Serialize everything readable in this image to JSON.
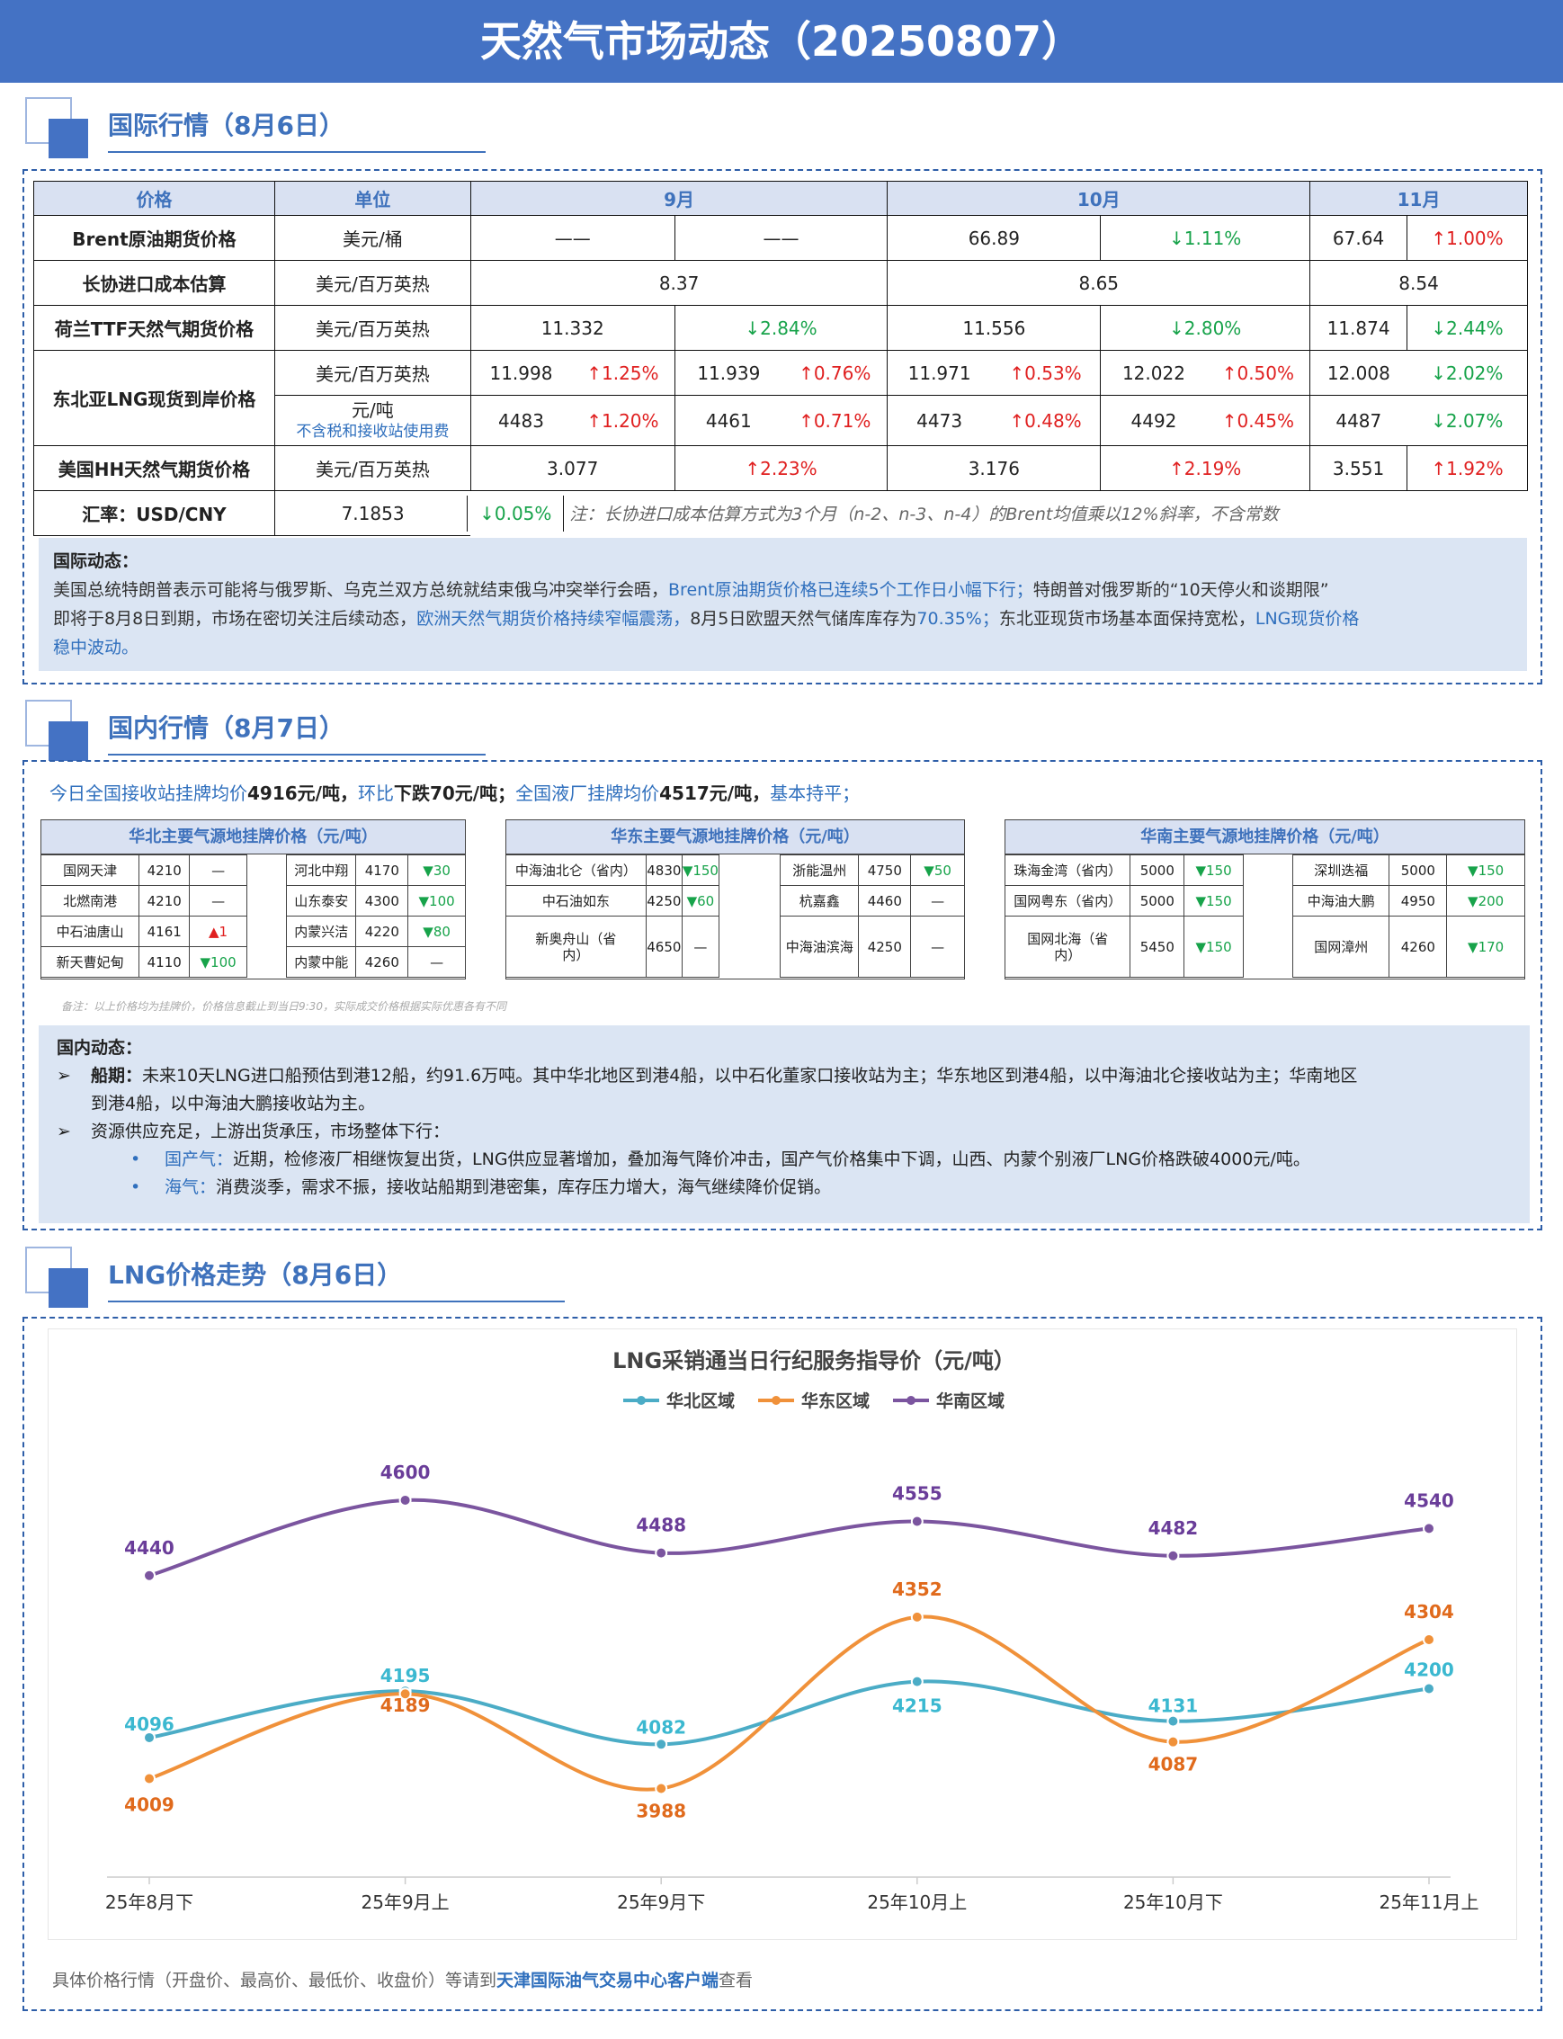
{
  "title": "天然气市场动态（20250807）",
  "sections": {
    "intl": "国际行情（8月6日）",
    "domestic": "国内行情（8月7日）",
    "trend": "LNG价格走势（8月6日）"
  },
  "intl_table": {
    "headers": [
      "价格",
      "单位",
      "9月",
      "10月",
      "11月"
    ],
    "brent": {
      "label": "Brent原油期货价格",
      "unit": "美元/桶",
      "sep_v": "——",
      "sep_c": "——",
      "oct_v": "66.89",
      "oct_c": "↓1.11%",
      "nov_v": "67.64",
      "nov_c": "↑1.00%"
    },
    "longterm": {
      "label": "长协进口成本估算",
      "unit": "美元/百万英热",
      "sep": "8.37",
      "oct": "8.65",
      "nov": "8.54"
    },
    "ttf": {
      "label": "荷兰TTF天然气期货价格",
      "unit": "美元/百万英热",
      "sep_v": "11.332",
      "sep_c": "↓2.84%",
      "oct_v": "11.556",
      "oct_c": "↓2.80%",
      "nov_v": "11.874",
      "nov_c": "↓2.44%"
    },
    "ne_asia": {
      "label": "东北亚LNG现货到岸价格",
      "unit1": "美元/百万英热",
      "row1": [
        "11.998",
        "↑1.25%",
        "11.939",
        "↑0.76%",
        "11.971",
        "↑0.53%",
        "12.022",
        "↑0.50%",
        "12.008",
        "↓2.02%"
      ],
      "unit2a": "元/吨",
      "unit2b": "不含税和接收站使用费",
      "row2": [
        "4483",
        "↑1.20%",
        "4461",
        "↑0.71%",
        "4473",
        "↑0.48%",
        "4492",
        "↑0.45%",
        "4487",
        "↓2.07%"
      ]
    },
    "hh": {
      "label": "美国HH天然气期货价格",
      "unit": "美元/百万英热",
      "sep_v": "3.077",
      "sep_c": "↑2.23%",
      "oct_v": "3.176",
      "oct_c": "↑2.19%",
      "nov_v": "3.551",
      "nov_c": "↑1.92%"
    },
    "fx": {
      "label": "汇率：USD/CNY",
      "value": "7.1853",
      "change": "↓0.05%"
    },
    "note": "注：长协进口成本估算方式为3个月（n-2、n-3、n-4）的Brent均值乘以12%斜率，不含常数"
  },
  "intl_news": {
    "title": "国际动态：",
    "p1": "美国总统特朗普表示可能将与俄罗斯、乌克兰双方总统就结束俄乌冲突举行会晤，",
    "p1b": "Brent原油期货价格已连续5个工作日小幅下行；",
    "p1c": "特朗普对俄罗斯的“10天停火和谈期限”",
    "p2": "即将于8月8日到期，市场在密切关注后续动态，",
    "p2b": "欧洲天然气期货价格持续窄幅震荡，",
    "p2c": "8月5日欧盟天然气储库库存为",
    "p2d": "70.35%；",
    "p2e": "东北亚现货市场基本面保持宽松，",
    "p2f": "LNG现货价格",
    "p3": "稳中波动。"
  },
  "domestic_summary": {
    "a": "今日全国接收站挂牌均价",
    "b": "4916元/吨，",
    "c": "环比",
    "d": "下跌70元/吨；",
    "e": "全国液厂挂牌均价",
    "f": "4517元/吨，",
    "g": "基本持平；"
  },
  "regions": [
    {
      "title": "华北主要气源地挂牌价格（元/吨）",
      "left": [
        [
          "国网天津",
          "4210",
          "—"
        ],
        [
          "北燃南港",
          "4210",
          "—"
        ],
        [
          "中石油唐山",
          "4161",
          "▲1"
        ],
        [
          "新天曹妃甸",
          "4110",
          "▼100"
        ]
      ],
      "right": [
        [
          "河北中翔",
          "4170",
          "▼30"
        ],
        [
          "山东泰安",
          "4300",
          "▼100"
        ],
        [
          "内蒙兴洁",
          "4220",
          "▼80"
        ],
        [
          "内蒙中能",
          "4260",
          "—"
        ]
      ]
    },
    {
      "title": "华东主要气源地挂牌价格（元/吨）",
      "left": [
        [
          "中海油北仑（省内）",
          "4830",
          "▼150"
        ],
        [
          "中石油如东",
          "4250",
          "▼60"
        ],
        [
          "新奥舟山（省内）",
          "4650",
          "—"
        ]
      ],
      "right": [
        [
          "浙能温州",
          "4750",
          "▼50"
        ],
        [
          "杭嘉鑫",
          "4460",
          "—"
        ],
        [
          "中海油滨海",
          "4250",
          "—"
        ]
      ]
    },
    {
      "title": "华南主要气源地挂牌价格（元/吨）",
      "left": [
        [
          "珠海金湾（省内）",
          "5000",
          "▼150"
        ],
        [
          "国网粤东（省内）",
          "5000",
          "▼150"
        ],
        [
          "国网北海（省内）",
          "5450",
          "▼150"
        ]
      ],
      "right": [
        [
          "深圳迭福",
          "5000",
          "▼150"
        ],
        [
          "中海油大鹏",
          "4950",
          "▼200"
        ],
        [
          "国网漳州",
          "4260",
          "▼170"
        ]
      ]
    }
  ],
  "small_note": "备注：以上价格均为挂牌价，价格信息截止到当日9:30，实际成交价格根据实际优惠各有不同",
  "dom_news": {
    "title": "国内动态：",
    "b1a": "船期：",
    "b1b": "未来10天LNG进口船预估到港12船，约91.6万吨。其中华北地区到港4船，以中石化董家口接收站为主；华东地区到港4船，以中海油北仑接收站为主；华南地区",
    "b1c": "到港4船，以中海油大鹏接收站为主。",
    "b2": "资源供应充足，上游出货承压，市场整体下行：",
    "s1a": "国产气：",
    "s1b": "近期，检修液厂相继恢复出货，LNG供应显著增加，叠加海气降价冲击，国产气价格集中下调，山西、内蒙个别液厂LNG价格跌破4000元/吨。",
    "s2a": "海气：",
    "s2b": "消费淡季，需求不振，接收站船期到港密集，库存压力增大，海气继续降价促销。"
  },
  "chart_data": {
    "type": "line",
    "title": "LNG采销通当日行纪服务指导价（元/吨）",
    "categories": [
      "25年8月下",
      "25年9月上",
      "25年9月下",
      "25年10月上",
      "25年10月下",
      "25年11月上"
    ],
    "series": [
      {
        "name": "华北区域",
        "values": [
          4096,
          4195,
          4082,
          4215,
          4131,
          4200
        ],
        "color": "#4bacc6"
      },
      {
        "name": "华东区域",
        "values": [
          4009,
          4189,
          3988,
          4352,
          4087,
          4304
        ],
        "color": "#f0913a"
      },
      {
        "name": "华南区域",
        "values": [
          4440,
          4600,
          4488,
          4555,
          4482,
          4540
        ],
        "color": "#7b559f"
      }
    ],
    "ylim": [
      3800,
      4850
    ],
    "grid": false,
    "legend": "top"
  },
  "footer": {
    "a": "具体价格行情（开盘价、最高价、最低价、收盘价）等请到",
    "b": "天津国际油气交易中心客户端",
    "c": "查看"
  }
}
